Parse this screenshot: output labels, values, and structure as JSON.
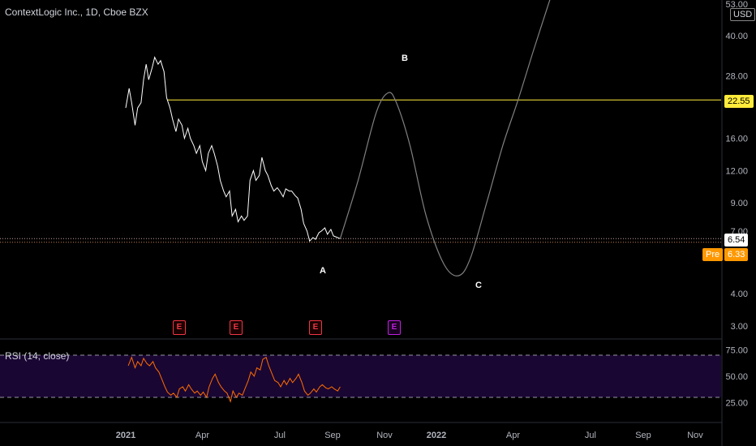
{
  "header": {
    "title": "ContextLogic Inc., 1D, Cboe BZX"
  },
  "currency_badge": "USD",
  "price_tags": {
    "level_line": "22.55",
    "last_price": "6.54",
    "premarket_label": "Pre",
    "premarket_price": "6.33"
  },
  "wave_labels": {
    "a": "A",
    "b": "B",
    "c": "C"
  },
  "earnings": [
    {
      "label": "E",
      "kind": "past"
    },
    {
      "label": "E",
      "kind": "past"
    },
    {
      "label": "E",
      "kind": "past"
    },
    {
      "label": "E",
      "kind": "future"
    }
  ],
  "rsi": {
    "title": "RSI (14, close)",
    "levels": [
      70,
      30
    ]
  },
  "colors": {
    "background": "#000000",
    "price_line": "#ffffff",
    "level_line": "#ffeb3b",
    "projection": "#808080",
    "rsi_line": "#ff6d00",
    "rsi_band": "#1a0633",
    "earnings_past": "#f23645",
    "earnings_future": "#c020e0",
    "premarket": "#ff9800"
  },
  "chart_data": [
    {
      "type": "line",
      "title": "ContextLogic Inc., 1D, Cboe BZX",
      "scale": "log",
      "y_ticks": [
        "53.00",
        "40.00",
        "28.00",
        "22.55",
        "16.00",
        "12.00",
        "9.00",
        "7.00",
        "6.54",
        "6.33",
        "4.00",
        "3.00"
      ],
      "x_ticks": [
        "2021",
        "Apr",
        "Jul",
        "Sep",
        "Nov",
        "2022",
        "Apr",
        "Jul",
        "Sep",
        "Nov"
      ],
      "ylim": [
        2.6,
        56
      ],
      "horizontal_level": 22.55,
      "last_price": 6.54,
      "premarket_price": 6.33,
      "series": [
        {
          "values": [
            [
              "2021-01-01",
              21.0
            ],
            [
              "2021-01-05",
              25.0
            ],
            [
              "2021-01-08",
              22.0
            ],
            [
              "2021-01-12",
              18.0
            ],
            [
              "2021-01-15",
              21.0
            ],
            [
              "2021-01-19",
              22.0
            ],
            [
              "2021-01-22",
              27.0
            ],
            [
              "2021-01-25",
              31.0
            ],
            [
              "2021-01-28",
              27.0
            ],
            [
              "2021-02-01",
              30.0
            ],
            [
              "2021-02-04",
              33.0
            ],
            [
              "2021-02-08",
              31.0
            ],
            [
              "2021-02-11",
              32.0
            ],
            [
              "2021-02-15",
              29.0
            ],
            [
              "2021-02-18",
              23.0
            ],
            [
              "2021-02-22",
              21.0
            ],
            [
              "2021-02-25",
              19.0
            ],
            [
              "2021-03-01",
              17.0
            ],
            [
              "2021-03-04",
              19.0
            ],
            [
              "2021-03-08",
              18.0
            ],
            [
              "2021-03-11",
              16.0
            ],
            [
              "2021-03-15",
              17.5
            ],
            [
              "2021-03-18",
              16.0
            ],
            [
              "2021-03-22",
              15.0
            ],
            [
              "2021-03-25",
              14.0
            ],
            [
              "2021-03-29",
              15.0
            ],
            [
              "2021-04-01",
              13.0
            ],
            [
              "2021-04-05",
              12.0
            ],
            [
              "2021-04-08",
              14.0
            ],
            [
              "2021-04-12",
              15.0
            ],
            [
              "2021-04-15",
              14.0
            ],
            [
              "2021-04-19",
              12.5
            ],
            [
              "2021-04-22",
              11.0
            ],
            [
              "2021-04-26",
              10.0
            ],
            [
              "2021-04-29",
              9.5
            ],
            [
              "2021-05-03",
              10.0
            ],
            [
              "2021-05-06",
              8.0
            ],
            [
              "2021-05-10",
              8.5
            ],
            [
              "2021-05-13",
              7.6
            ],
            [
              "2021-05-17",
              8.0
            ],
            [
              "2021-05-20",
              7.7
            ],
            [
              "2021-05-24",
              8.0
            ],
            [
              "2021-05-27",
              11.0
            ],
            [
              "2021-05-31",
              12.0
            ],
            [
              "2021-06-03",
              11.0
            ],
            [
              "2021-06-07",
              11.5
            ],
            [
              "2021-06-10",
              13.5
            ],
            [
              "2021-06-14",
              12.0
            ],
            [
              "2021-06-17",
              11.5
            ],
            [
              "2021-06-21",
              10.5
            ],
            [
              "2021-06-24",
              10.0
            ],
            [
              "2021-06-28",
              10.3
            ],
            [
              "2021-07-01",
              10.0
            ],
            [
              "2021-07-05",
              9.5
            ],
            [
              "2021-07-08",
              10.2
            ],
            [
              "2021-07-12",
              10.0
            ],
            [
              "2021-07-15",
              10.0
            ],
            [
              "2021-07-19",
              9.6
            ],
            [
              "2021-07-22",
              9.4
            ],
            [
              "2021-07-26",
              8.5
            ],
            [
              "2021-07-29",
              7.5
            ],
            [
              "2021-08-02",
              7.0
            ],
            [
              "2021-08-05",
              6.4
            ],
            [
              "2021-08-09",
              6.6
            ],
            [
              "2021-08-12",
              6.5
            ],
            [
              "2021-08-16",
              6.9
            ],
            [
              "2021-08-19",
              7.0
            ],
            [
              "2021-08-23",
              7.2
            ],
            [
              "2021-08-26",
              6.8
            ],
            [
              "2021-08-30",
              7.1
            ],
            [
              "2021-09-02",
              6.7
            ],
            [
              "2021-09-07",
              6.6
            ],
            [
              "2021-09-10",
              6.54
            ]
          ]
        },
        {
          "values": [
            [
              "2021-09-10",
              6.54
            ],
            [
              "2021-10-01",
              11.0
            ],
            [
              "2021-10-22",
              20.0
            ],
            [
              "2021-11-05",
              24.0
            ],
            [
              "2021-11-15",
              22.0
            ],
            [
              "2021-12-01",
              15.0
            ],
            [
              "2021-12-20",
              8.0
            ],
            [
              "2022-01-10",
              5.2
            ],
            [
              "2022-01-27",
              4.7
            ],
            [
              "2022-02-10",
              5.5
            ],
            [
              "2022-03-01",
              9.0
            ],
            [
              "2022-03-20",
              15.0
            ],
            [
              "2022-04-07",
              22.55
            ],
            [
              "2022-04-25",
              35.0
            ],
            [
              "2022-05-15",
              56.0
            ]
          ]
        }
      ]
    },
    {
      "type": "line",
      "title": "RSI (14, close)",
      "y_ticks": [
        "75.00",
        "50.00",
        "25.00"
      ],
      "ylim": [
        20,
        78
      ],
      "band": [
        30,
        70
      ],
      "series": [
        {
          "values": [
            [
              "2021-01-04",
              60
            ],
            [
              "2021-01-08",
              68
            ],
            [
              "2021-01-12",
              58
            ],
            [
              "2021-01-15",
              64
            ],
            [
              "2021-01-19",
              60
            ],
            [
              "2021-01-22",
              67
            ],
            [
              "2021-01-26",
              62
            ],
            [
              "2021-01-29",
              60
            ],
            [
              "2021-02-02",
              64
            ],
            [
              "2021-02-05",
              58
            ],
            [
              "2021-02-09",
              54
            ],
            [
              "2021-02-12",
              48
            ],
            [
              "2021-02-16",
              40
            ],
            [
              "2021-02-19",
              35
            ],
            [
              "2021-02-23",
              32
            ],
            [
              "2021-02-26",
              34
            ],
            [
              "2021-03-02",
              30
            ],
            [
              "2021-03-05",
              38
            ],
            [
              "2021-03-09",
              40
            ],
            [
              "2021-03-12",
              36
            ],
            [
              "2021-03-16",
              42
            ],
            [
              "2021-03-19",
              38
            ],
            [
              "2021-03-23",
              34
            ],
            [
              "2021-03-26",
              36
            ],
            [
              "2021-03-30",
              32
            ],
            [
              "2021-04-02",
              35
            ],
            [
              "2021-04-06",
              30
            ],
            [
              "2021-04-09",
              40
            ],
            [
              "2021-04-13",
              48
            ],
            [
              "2021-04-16",
              52
            ],
            [
              "2021-04-20",
              44
            ],
            [
              "2021-04-23",
              40
            ],
            [
              "2021-04-27",
              36
            ],
            [
              "2021-04-30",
              34
            ],
            [
              "2021-05-04",
              26
            ],
            [
              "2021-05-07",
              36
            ],
            [
              "2021-05-11",
              30
            ],
            [
              "2021-05-14",
              34
            ],
            [
              "2021-05-18",
              32
            ],
            [
              "2021-05-21",
              38
            ],
            [
              "2021-05-25",
              46
            ],
            [
              "2021-05-28",
              54
            ],
            [
              "2021-06-01",
              50
            ],
            [
              "2021-06-04",
              58
            ],
            [
              "2021-06-08",
              56
            ],
            [
              "2021-06-11",
              66
            ],
            [
              "2021-06-15",
              68
            ],
            [
              "2021-06-18",
              60
            ],
            [
              "2021-06-22",
              52
            ],
            [
              "2021-06-25",
              46
            ],
            [
              "2021-06-29",
              44
            ],
            [
              "2021-07-02",
              40
            ],
            [
              "2021-07-06",
              46
            ],
            [
              "2021-07-09",
              42
            ],
            [
              "2021-07-13",
              48
            ],
            [
              "2021-07-16",
              44
            ],
            [
              "2021-07-20",
              48
            ],
            [
              "2021-07-23",
              52
            ],
            [
              "2021-07-27",
              44
            ],
            [
              "2021-07-30",
              36
            ],
            [
              "2021-08-03",
              32
            ],
            [
              "2021-08-06",
              34
            ],
            [
              "2021-08-10",
              38
            ],
            [
              "2021-08-13",
              35
            ],
            [
              "2021-08-17",
              40
            ],
            [
              "2021-08-20",
              42
            ],
            [
              "2021-08-24",
              39
            ],
            [
              "2021-08-27",
              38
            ],
            [
              "2021-08-31",
              40
            ],
            [
              "2021-09-03",
              38
            ],
            [
              "2021-09-07",
              36
            ],
            [
              "2021-09-10",
              40
            ]
          ]
        }
      ]
    }
  ]
}
